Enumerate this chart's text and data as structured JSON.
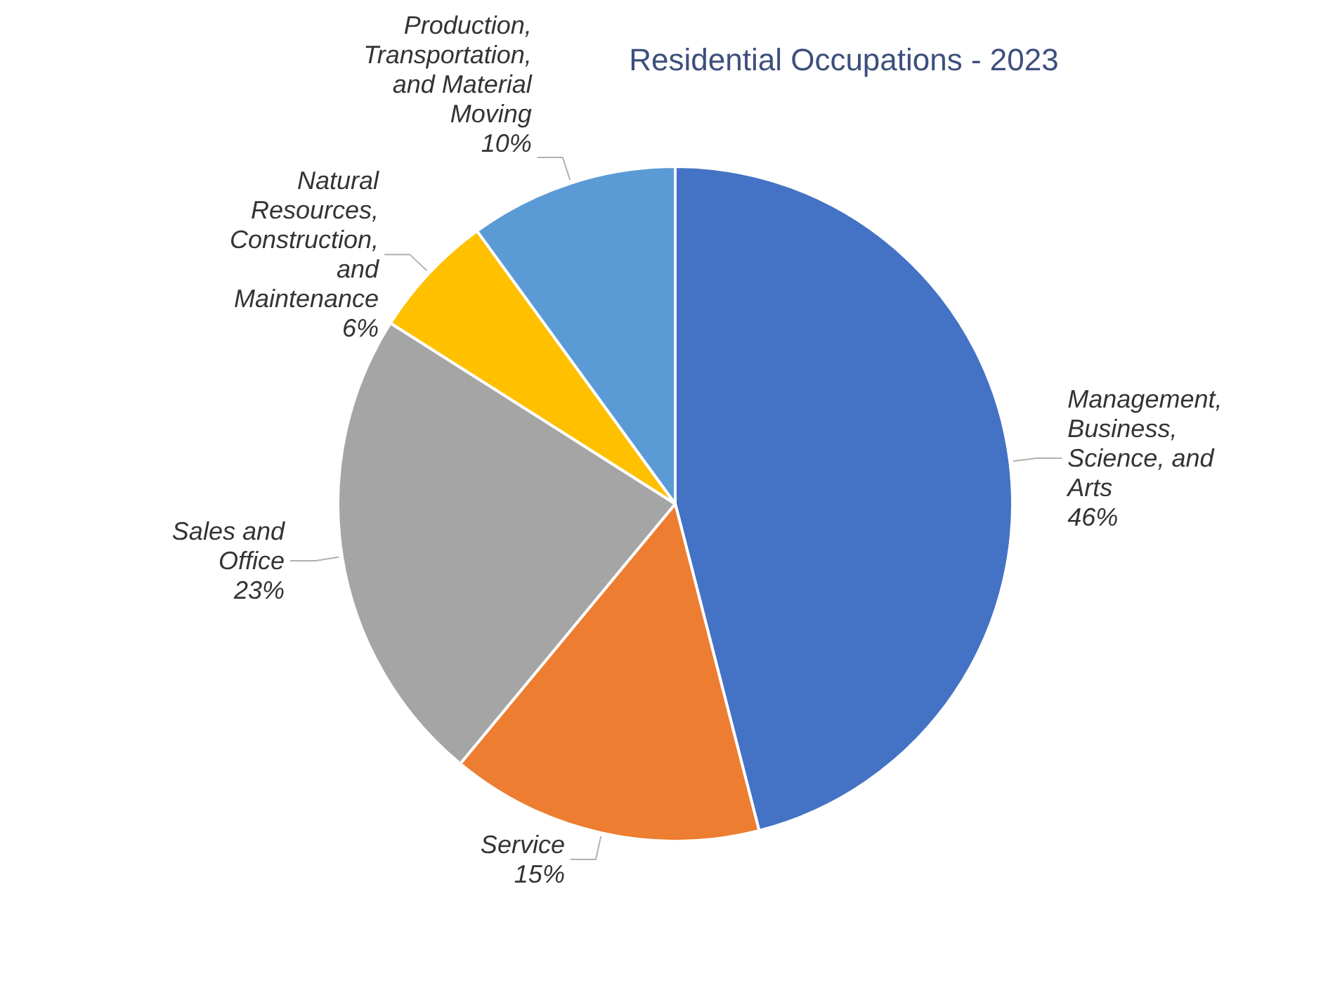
{
  "chart_data": {
    "type": "pie",
    "title": "Residential Occupations - 2023",
    "categories": [
      "Management, Business, Science, and Arts",
      "Service",
      "Sales and Office",
      "Natural Resources, Construction, and Maintenance",
      "Production, Transportation, and Material Moving"
    ],
    "values": [
      46,
      15,
      23,
      6,
      10
    ],
    "value_labels": [
      "46%",
      "15%",
      "23%",
      "6%",
      "10%"
    ],
    "colors": [
      "#4472c4",
      "#ed7d31",
      "#a5a5a5",
      "#ffc000",
      "#5b9bd5"
    ]
  }
}
